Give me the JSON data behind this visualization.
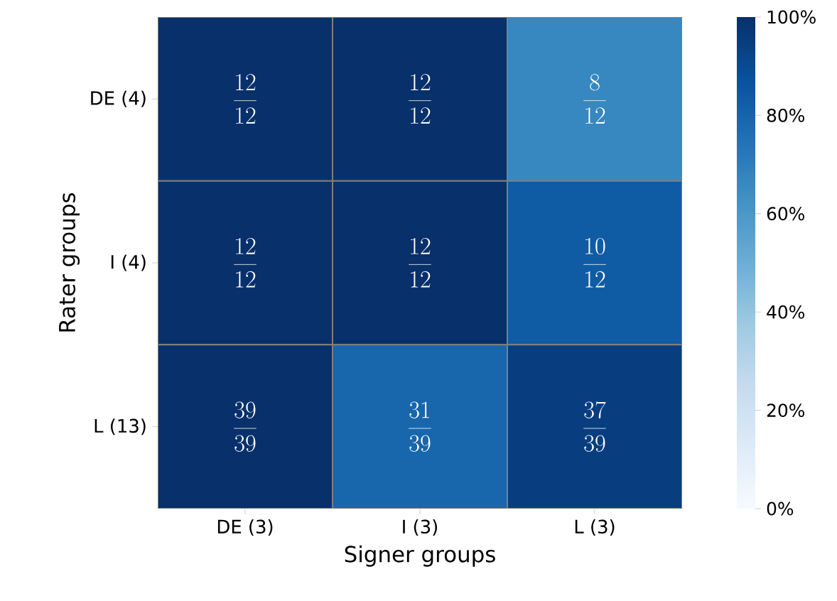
{
  "chart_data": {
    "type": "heatmap",
    "xlabel": "Signer groups",
    "ylabel": "Rater groups",
    "categories": [
      "DE (3)",
      "I (3)",
      "L (3)"
    ],
    "y_categories": [
      "DE (4)",
      "I (4)",
      "L (13)"
    ],
    "cells": [
      [
        100,
        100,
        66.7
      ],
      [
        100,
        100,
        83.3
      ],
      [
        100,
        79.5,
        94.9
      ]
    ],
    "cell_labels": [
      [
        "\\frac{12}{12}",
        "\\frac{12}{12}",
        "\\frac{8}{12}"
      ],
      [
        "\\frac{12}{12}",
        "\\frac{12}{12}",
        "\\frac{10}{12}"
      ],
      [
        "\\frac{39}{39}",
        "\\frac{31}{39}",
        "\\frac{37}{39}"
      ]
    ],
    "clim": [
      0,
      100
    ],
    "cticks": [
      {
        "value": 0,
        "label": "0%"
      },
      {
        "value": 20,
        "label": "20%"
      },
      {
        "value": 40,
        "label": "40%"
      },
      {
        "value": 60,
        "label": "60%"
      },
      {
        "value": 80,
        "label": "80%"
      },
      {
        "value": 100,
        "label": "100%"
      }
    ]
  }
}
